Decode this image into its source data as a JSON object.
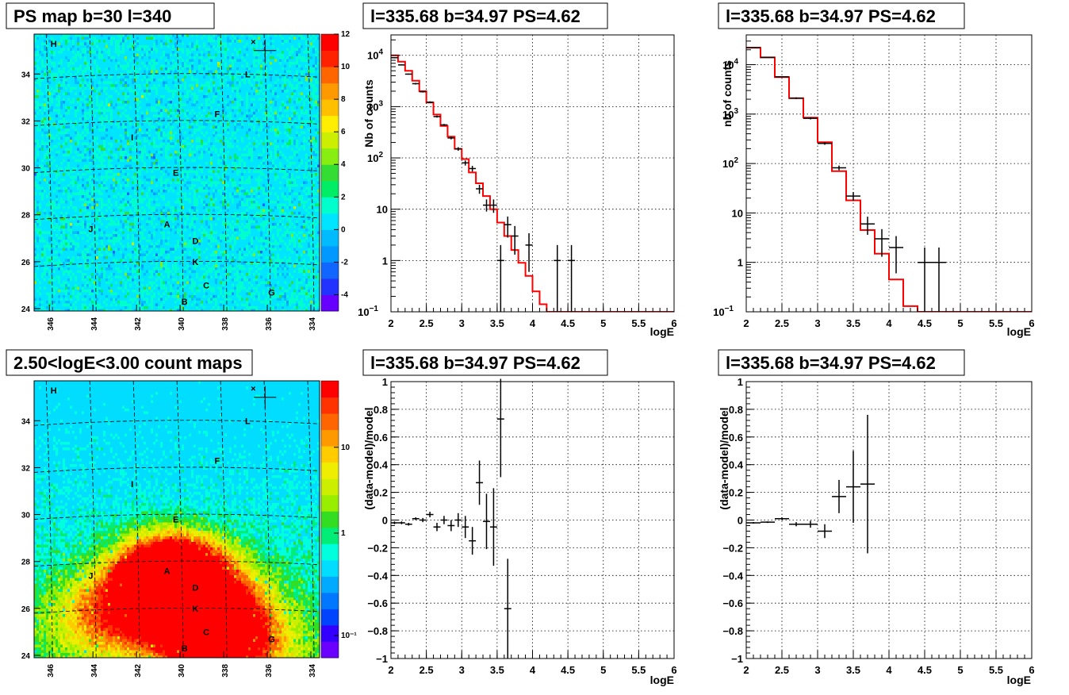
{
  "chart_data": [
    {
      "type": "heatmap",
      "id": "psmap",
      "title": "PS map b=30 l=340",
      "colormap": "rainbow",
      "color_range": [
        -5,
        12
      ],
      "colorbar_ticks": [
        "-4",
        "-2",
        "0",
        "2",
        "4",
        "6",
        "8",
        "10",
        "12"
      ],
      "x_ticks": [
        "346",
        "344",
        "342",
        "340",
        "338",
        "336",
        "334"
      ],
      "y_ticks": [
        "24",
        "26",
        "28",
        "30",
        "32",
        "34"
      ],
      "sources": [
        "H",
        "L",
        "F",
        "I",
        "E",
        "A",
        "J",
        "D",
        "K",
        "C",
        "B",
        "G"
      ],
      "marker_label": "×"
    },
    {
      "type": "line",
      "id": "spec1",
      "title": "l=335.68 b=34.97 PS=4.62",
      "xlabel": "logE",
      "ylabel": "Nb of counts",
      "ylog": true,
      "xlim": [
        2,
        6
      ],
      "ylim": [
        0.1,
        25000
      ],
      "x_ticks": [
        "2",
        "2.5",
        "3",
        "3.5",
        "4",
        "4.5",
        "5",
        "5.5",
        "6"
      ],
      "y_ticks": [
        {
          "v": 0.1,
          "text": "10",
          "exp": "−1"
        },
        {
          "v": 1,
          "text": "1",
          "exp": ""
        },
        {
          "v": 10,
          "text": "10",
          "exp": ""
        },
        {
          "v": 100,
          "text": "10",
          "exp": "2"
        },
        {
          "v": 1000,
          "text": "10",
          "exp": "3"
        },
        {
          "v": 10000,
          "text": "10",
          "exp": "4"
        }
      ],
      "bin_width": 0.1,
      "model_step": [
        [
          2.0,
          10000
        ],
        [
          2.1,
          7500
        ],
        [
          2.2,
          5000
        ],
        [
          2.3,
          3200
        ],
        [
          2.4,
          2000
        ],
        [
          2.5,
          1200
        ],
        [
          2.6,
          700
        ],
        [
          2.7,
          420
        ],
        [
          2.8,
          260
        ],
        [
          2.9,
          150
        ],
        [
          3.0,
          95
        ],
        [
          3.1,
          52
        ],
        [
          3.2,
          32
        ],
        [
          3.3,
          18
        ],
        [
          3.4,
          10
        ],
        [
          3.5,
          5.5
        ],
        [
          3.6,
          3.0
        ],
        [
          3.7,
          1.6
        ],
        [
          3.8,
          0.9
        ],
        [
          3.9,
          0.5
        ],
        [
          4.0,
          0.25
        ],
        [
          4.1,
          0.14
        ],
        [
          4.2,
          0.1
        ],
        [
          6.0,
          0.1
        ]
      ],
      "data": [
        {
          "x": 2.05,
          "y": 9000,
          "lo": 8800,
          "hi": 9200
        },
        {
          "x": 2.15,
          "y": 6500,
          "lo": 6350,
          "hi": 6650
        },
        {
          "x": 2.25,
          "y": 4300,
          "lo": 4200,
          "hi": 4400
        },
        {
          "x": 2.35,
          "y": 2800,
          "lo": 2700,
          "hi": 2900
        },
        {
          "x": 2.45,
          "y": 1950,
          "lo": 1880,
          "hi": 2020
        },
        {
          "x": 2.55,
          "y": 1220,
          "lo": 1170,
          "hi": 1270
        },
        {
          "x": 2.65,
          "y": 640,
          "lo": 610,
          "hi": 670
        },
        {
          "x": 2.75,
          "y": 440,
          "lo": 420,
          "hi": 460
        },
        {
          "x": 2.85,
          "y": 245,
          "lo": 230,
          "hi": 260
        },
        {
          "x": 2.95,
          "y": 150,
          "lo": 138,
          "hi": 162
        },
        {
          "x": 3.05,
          "y": 80,
          "lo": 71,
          "hi": 89
        },
        {
          "x": 3.15,
          "y": 62,
          "lo": 54,
          "hi": 70
        },
        {
          "x": 3.25,
          "y": 25,
          "lo": 20,
          "hi": 30
        },
        {
          "x": 3.35,
          "y": 12,
          "lo": 9,
          "hi": 15.5
        },
        {
          "x": 3.45,
          "y": 12,
          "lo": 8.5,
          "hi": 15.5
        },
        {
          "x": 3.55,
          "y": 1,
          "lo": 0.1,
          "hi": 2.0
        },
        {
          "x": 3.65,
          "y": 5,
          "lo": 2.8,
          "hi": 7.2
        },
        {
          "x": 3.75,
          "y": 3,
          "lo": 1.3,
          "hi": 4.7
        },
        {
          "x": 3.95,
          "y": 2,
          "lo": 0.6,
          "hi": 3.4
        },
        {
          "x": 4.35,
          "y": 1,
          "lo": 0.1,
          "hi": 2.0
        },
        {
          "x": 4.55,
          "y": 1,
          "lo": 0.1,
          "hi": 2.0
        }
      ]
    },
    {
      "type": "line",
      "id": "spec2",
      "title": "l=335.68 b=34.97 PS=4.62",
      "xlabel": "logE",
      "ylabel": "nb of counts",
      "ylog": true,
      "xlim": [
        2,
        6
      ],
      "ylim": [
        0.1,
        40000
      ],
      "x_ticks": [
        "2",
        "2.5",
        "3",
        "3.5",
        "4",
        "4.5",
        "5",
        "5.5",
        "6"
      ],
      "y_ticks": [
        {
          "v": 0.1,
          "text": "10",
          "exp": "−1"
        },
        {
          "v": 1,
          "text": "1",
          "exp": ""
        },
        {
          "v": 10,
          "text": "10",
          "exp": ""
        },
        {
          "v": 100,
          "text": "10",
          "exp": "2"
        },
        {
          "v": 1000,
          "text": "10",
          "exp": "3"
        },
        {
          "v": 10000,
          "text": "10",
          "exp": "4"
        }
      ],
      "bin_width": 0.2,
      "model_step": [
        [
          2.0,
          22000
        ],
        [
          2.2,
          14000
        ],
        [
          2.4,
          5600
        ],
        [
          2.6,
          2100
        ],
        [
          2.8,
          850
        ],
        [
          3.0,
          270
        ],
        [
          3.2,
          70
        ],
        [
          3.4,
          18
        ],
        [
          3.6,
          4.5
        ],
        [
          3.8,
          1.5
        ],
        [
          4.0,
          0.45
        ],
        [
          4.2,
          0.13
        ],
        [
          4.4,
          0.1
        ],
        [
          6.0,
          0.1
        ]
      ],
      "data": [
        {
          "x": 2.1,
          "y": 22000,
          "lo": 21700,
          "hi": 22300
        },
        {
          "x": 2.3,
          "y": 14000,
          "lo": 13700,
          "hi": 14300
        },
        {
          "x": 2.5,
          "y": 5700,
          "lo": 5550,
          "hi": 5850
        },
        {
          "x": 2.7,
          "y": 2100,
          "lo": 2020,
          "hi": 2180
        },
        {
          "x": 2.9,
          "y": 820,
          "lo": 780,
          "hi": 860
        },
        {
          "x": 3.1,
          "y": 255,
          "lo": 240,
          "hi": 270
        },
        {
          "x": 3.3,
          "y": 82,
          "lo": 73,
          "hi": 91
        },
        {
          "x": 3.5,
          "y": 22,
          "lo": 17.5,
          "hi": 26.5
        },
        {
          "x": 3.7,
          "y": 6,
          "lo": 3.6,
          "hi": 8.4
        },
        {
          "x": 3.9,
          "y": 3,
          "lo": 1.3,
          "hi": 4.7
        },
        {
          "x": 4.1,
          "y": 2,
          "lo": 0.6,
          "hi": 3.4
        },
        {
          "x": 4.5,
          "y": 1,
          "lo": 0.1,
          "hi": 2.0
        },
        {
          "x": 4.7,
          "y": 1,
          "lo": 0.1,
          "hi": 2.0
        }
      ]
    },
    {
      "type": "heatmap",
      "id": "countmap",
      "title": "2.50<logE<3.00 count maps",
      "colormap": "rainbow-log",
      "colorbar_ticks": [
        "10⁻¹",
        "1",
        "10"
      ],
      "x_ticks": [
        "346",
        "344",
        "342",
        "340",
        "338",
        "336",
        "334"
      ],
      "y_ticks": [
        "24",
        "26",
        "28",
        "30",
        "32",
        "34"
      ],
      "sources": [
        "H",
        "L",
        "F",
        "I",
        "E",
        "A",
        "J",
        "D",
        "K",
        "C",
        "B",
        "G"
      ],
      "marker_label": "×"
    },
    {
      "type": "scatter",
      "id": "resid1",
      "title": "l=335.68 b=34.97 PS=4.62",
      "xlabel": "logE",
      "ylabel": "(data-model)/model",
      "xlim": [
        2,
        6
      ],
      "ylim": [
        -1,
        1
      ],
      "x_ticks": [
        "2",
        "2.5",
        "3",
        "3.5",
        "4",
        "4.5",
        "5",
        "5.5",
        "6"
      ],
      "y_ticks": [
        "−1",
        "−0.8",
        "−0.6",
        "−0.4",
        "−0.2",
        "0",
        "0.2",
        "0.4",
        "0.6",
        "0.8",
        "1"
      ],
      "bin_width": 0.1,
      "data": [
        {
          "x": 2.05,
          "y": -0.02,
          "e": 0.01
        },
        {
          "x": 2.15,
          "y": -0.02,
          "e": 0.01
        },
        {
          "x": 2.25,
          "y": -0.03,
          "e": 0.01
        },
        {
          "x": 2.35,
          "y": 0.01,
          "e": 0.01
        },
        {
          "x": 2.45,
          "y": 0.0,
          "e": 0.015
        },
        {
          "x": 2.55,
          "y": 0.04,
          "e": 0.02
        },
        {
          "x": 2.65,
          "y": -0.05,
          "e": 0.03
        },
        {
          "x": 2.75,
          "y": 0.0,
          "e": 0.03
        },
        {
          "x": 2.85,
          "y": -0.04,
          "e": 0.04
        },
        {
          "x": 2.95,
          "y": 0.0,
          "e": 0.05
        },
        {
          "x": 3.05,
          "y": -0.05,
          "e": 0.08
        },
        {
          "x": 3.15,
          "y": -0.15,
          "e": 0.1
        },
        {
          "x": 3.25,
          "y": 0.27,
          "e": 0.16
        },
        {
          "x": 3.35,
          "y": -0.01,
          "e": 0.2
        },
        {
          "x": 3.45,
          "y": -0.05,
          "e": 0.28
        },
        {
          "x": 3.55,
          "y": 0.73,
          "e": 0.42
        },
        {
          "x": 3.65,
          "y": -0.64,
          "e": 0.36
        }
      ]
    },
    {
      "type": "scatter",
      "id": "resid2",
      "title": "l=335.68 b=34.97 PS=4.62",
      "xlabel": "logE",
      "ylabel": "(data-model)/model",
      "xlim": [
        2,
        6
      ],
      "ylim": [
        -1,
        1
      ],
      "x_ticks": [
        "2",
        "2.5",
        "3",
        "3.5",
        "4",
        "4.5",
        "5",
        "5.5",
        "6"
      ],
      "y_ticks": [
        "−1",
        "−0.8",
        "−0.6",
        "−0.4",
        "−0.2",
        "0",
        "0.2",
        "0.4",
        "0.6",
        "0.8",
        "1"
      ],
      "bin_width": 0.2,
      "data": [
        {
          "x": 2.1,
          "y": -0.02,
          "e": 0.006
        },
        {
          "x": 2.3,
          "y": -0.015,
          "e": 0.006
        },
        {
          "x": 2.5,
          "y": 0.01,
          "e": 0.01
        },
        {
          "x": 2.7,
          "y": -0.03,
          "e": 0.015
        },
        {
          "x": 2.9,
          "y": -0.03,
          "e": 0.025
        },
        {
          "x": 3.1,
          "y": -0.08,
          "e": 0.05
        },
        {
          "x": 3.3,
          "y": 0.17,
          "e": 0.12
        },
        {
          "x": 3.5,
          "y": 0.24,
          "e": 0.26
        },
        {
          "x": 3.7,
          "y": 0.26,
          "e": 0.5
        }
      ]
    }
  ]
}
